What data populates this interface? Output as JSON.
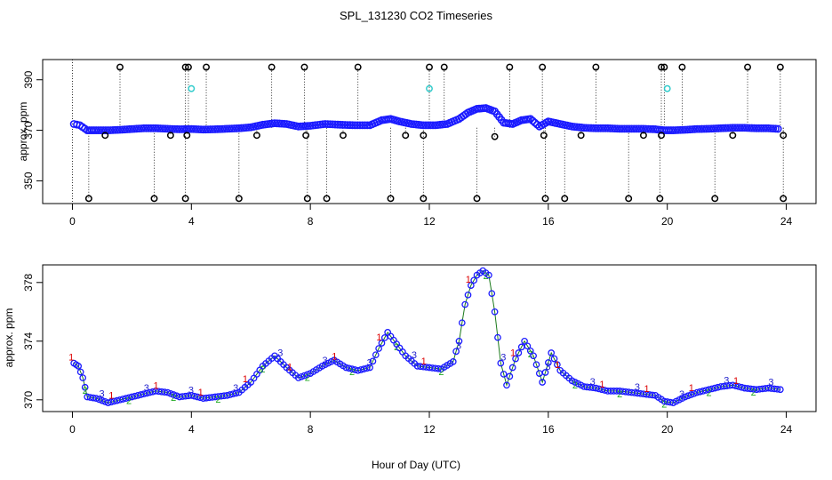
{
  "chart_data": {
    "title": "SPL_131230  CO2 Timeseries",
    "xlabel": "Hour of Day (UTC)",
    "x_ticks": [
      0,
      4,
      8,
      12,
      16,
      20,
      24
    ],
    "xlim": [
      -1,
      25
    ],
    "panels": [
      {
        "type": "scatter",
        "ylabel": "approx. ppm",
        "ylim": [
          341,
          398
        ],
        "y_ticks": [
          350,
          370,
          390
        ],
        "series": [
          {
            "name": "co2-main",
            "color": "#1a1aff",
            "x": [
              0.05,
              0.25,
              0.5,
              0.8,
              1.2,
              1.6,
              2.0,
              2.4,
              2.8,
              3.2,
              3.6,
              4.0,
              4.4,
              4.8,
              5.2,
              5.6,
              6.0,
              6.4,
              6.8,
              7.2,
              7.6,
              8.0,
              8.5,
              9.0,
              9.5,
              10.0,
              10.4,
              10.7,
              11.0,
              11.4,
              11.8,
              12.2,
              12.6,
              13.0,
              13.3,
              13.6,
              13.9,
              14.2,
              14.5,
              14.8,
              15.1,
              15.4,
              15.7,
              16.0,
              16.4,
              16.8,
              17.2,
              17.6,
              18.0,
              18.4,
              18.8,
              19.2,
              19.6,
              19.9,
              20.2,
              20.6,
              21.0,
              21.4,
              21.8,
              22.2,
              22.6,
              23.0,
              23.4,
              23.8
            ],
            "y": [
              372.5,
              372.0,
              370.0,
              370.0,
              370.0,
              370.2,
              370.5,
              370.8,
              370.8,
              370.6,
              370.4,
              370.5,
              370.3,
              370.4,
              370.6,
              370.8,
              371.2,
              372.2,
              372.8,
              372.5,
              371.5,
              371.8,
              372.5,
              372.2,
              372.0,
              372.0,
              374.0,
              374.5,
              373.5,
              372.5,
              372.0,
              372.0,
              372.5,
              374.5,
              377.0,
              378.5,
              378.8,
              377.5,
              373.0,
              372.5,
              374.0,
              374.5,
              371.5,
              373.5,
              372.5,
              371.5,
              371.0,
              370.8,
              370.8,
              370.6,
              370.6,
              370.6,
              370.4,
              370.0,
              370.0,
              370.2,
              370.5,
              370.6,
              370.8,
              371.0,
              371.0,
              370.8,
              370.8,
              370.5
            ]
          },
          {
            "name": "outliers-high",
            "color": "#000000",
            "x": [
              1.6,
              3.8,
              3.9,
              4.5,
              6.7,
              7.8,
              9.6,
              12.0,
              12.5,
              14.7,
              15.8,
              17.6,
              19.8,
              19.9,
              20.5,
              22.7,
              23.8
            ],
            "y": [
              395,
              395,
              395,
              395,
              395,
              395,
              395,
              395,
              395,
              395,
              395,
              395,
              395,
              395,
              395,
              395,
              395
            ]
          },
          {
            "name": "outliers-low",
            "color": "#000000",
            "x": [
              0.55,
              2.75,
              3.8,
              5.6,
              7.9,
              8.55,
              10.7,
              11.8,
              13.6,
              15.9,
              16.55,
              18.7,
              19.75,
              21.6,
              23.9
            ],
            "y": [
              343,
              343,
              343,
              343,
              343,
              343,
              343,
              343,
              343,
              343,
              343,
              343,
              343,
              343,
              343
            ]
          },
          {
            "name": "outliers-mid",
            "color": "#000000",
            "x": [
              1.1,
              3.3,
              3.85,
              6.2,
              7.85,
              9.1,
              11.2,
              11.8,
              14.2,
              15.85,
              17.1,
              19.2,
              19.8,
              22.2,
              23.9
            ],
            "y": [
              368,
              368,
              368,
              368,
              368,
              368,
              368,
              368,
              367.5,
              368,
              368,
              368,
              368,
              368,
              368
            ]
          },
          {
            "name": "cyan-points",
            "color": "#33cccc",
            "x": [
              4.0,
              12.0,
              20.0
            ],
            "y": [
              386.5,
              386.5,
              386.5
            ]
          }
        ]
      },
      {
        "type": "line",
        "ylabel": "approx. ppm",
        "ylim": [
          369.2,
          379.2
        ],
        "y_ticks": [
          370,
          374,
          378
        ],
        "point_labels": [
          "1",
          "2",
          "3"
        ],
        "series": [
          {
            "name": "co2-smooth",
            "color": "#1a1aff",
            "x": [
              0.05,
              0.2,
              0.35,
              0.5,
              0.8,
              1.2,
              1.6,
              2.0,
              2.4,
              2.8,
              3.2,
              3.6,
              4.0,
              4.4,
              4.8,
              5.2,
              5.6,
              6.0,
              6.4,
              6.8,
              7.2,
              7.6,
              8.0,
              8.4,
              8.8,
              9.2,
              9.6,
              10.0,
              10.3,
              10.6,
              10.9,
              11.2,
              11.6,
              12.0,
              12.4,
              12.8,
              13.0,
              13.2,
              13.4,
              13.6,
              13.8,
              14.0,
              14.2,
              14.4,
              14.6,
              14.9,
              15.2,
              15.5,
              15.8,
              16.1,
              16.4,
              16.8,
              17.2,
              17.6,
              18.0,
              18.4,
              18.8,
              19.2,
              19.6,
              19.9,
              20.2,
              20.6,
              21.0,
              21.4,
              21.8,
              22.2,
              22.6,
              23.0,
              23.4,
              23.8
            ],
            "y": [
              372.5,
              372.3,
              371.5,
              370.2,
              370.1,
              369.8,
              370.0,
              370.2,
              370.4,
              370.6,
              370.5,
              370.2,
              370.3,
              370.1,
              370.2,
              370.3,
              370.5,
              371.2,
              372.3,
              373.0,
              372.2,
              371.5,
              371.8,
              372.3,
              372.7,
              372.2,
              372.0,
              372.2,
              373.5,
              374.6,
              373.8,
              373.0,
              372.3,
              372.2,
              372.1,
              372.6,
              374.0,
              376.5,
              377.8,
              378.5,
              378.8,
              378.5,
              376.0,
              372.5,
              371.0,
              372.8,
              374.0,
              373.0,
              371.2,
              373.2,
              372.0,
              371.3,
              370.9,
              370.8,
              370.6,
              370.6,
              370.5,
              370.4,
              370.3,
              369.9,
              369.8,
              370.2,
              370.5,
              370.7,
              370.9,
              371.0,
              370.8,
              370.7,
              370.8,
              370.7
            ]
          }
        ]
      }
    ]
  }
}
